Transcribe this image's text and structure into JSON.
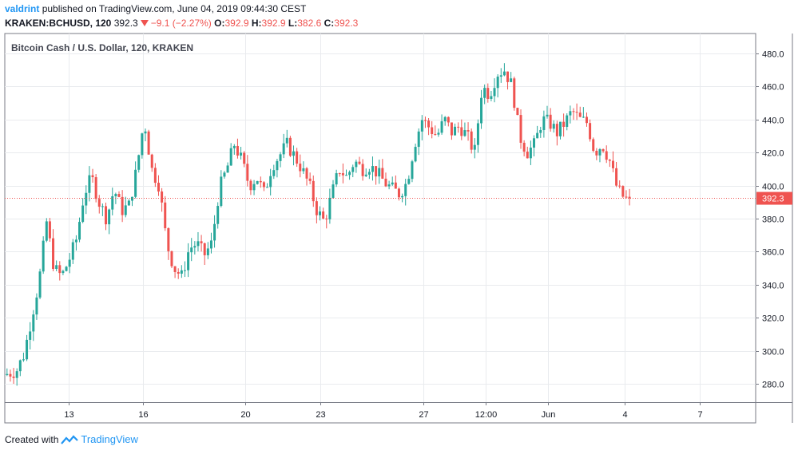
{
  "header": {
    "author": "valdrint",
    "published": "published on TradingView.com, June 04, 2019 09:44:30 CEST",
    "symbol": "KRAKEN:BCHUSD, 120",
    "last": "392.3",
    "change": "−9.1 (−2.27%)",
    "o_label": "O:",
    "o_value": "392.9",
    "h_label": "H:",
    "h_value": "392.9",
    "l_label": "L:",
    "l_value": "382.6",
    "c_label": "C:",
    "c_value": "392.3"
  },
  "footer": {
    "created_with": "Created with",
    "brand": "TradingView"
  },
  "colors": {
    "up": "#26a69a",
    "down": "#ef5350",
    "grid": "#e9ebee",
    "axis": "#787b86",
    "badge": "#ef5350"
  },
  "chart_data": {
    "type": "candlestick",
    "title": "Bitcoin Cash / U.S. Dollar, 120, KRAKEN",
    "ylim": [
      269,
      492
    ],
    "yticks": [
      280,
      300,
      320,
      340,
      360,
      380,
      400,
      420,
      440,
      460,
      480
    ],
    "xlim": [
      0,
      100
    ],
    "xticks": [
      {
        "label": "13",
        "pos": 8.5
      },
      {
        "label": "16",
        "pos": 18.4
      },
      {
        "label": "20",
        "pos": 32.0
      },
      {
        "label": "23",
        "pos": 42.0
      },
      {
        "label": "27",
        "pos": 55.7
      },
      {
        "label": "12:00",
        "pos": 64.0
      },
      {
        "label": "Jun",
        "pos": 72.3
      },
      {
        "label": "4",
        "pos": 82.5
      },
      {
        "label": "7",
        "pos": 92.6
      }
    ],
    "last_price": 392.3,
    "anchors": [
      [
        0,
        285
      ],
      [
        2,
        288
      ],
      [
        3,
        298
      ],
      [
        4,
        320
      ],
      [
        5,
        342
      ],
      [
        6,
        378
      ],
      [
        7,
        350
      ],
      [
        8,
        345
      ],
      [
        9,
        355
      ],
      [
        10,
        368
      ],
      [
        11,
        395
      ],
      [
        12,
        405
      ],
      [
        13,
        390
      ],
      [
        14,
        380
      ],
      [
        15,
        398
      ],
      [
        16,
        385
      ],
      [
        17,
        388
      ],
      [
        18,
        410
      ],
      [
        19,
        440
      ],
      [
        20,
        410
      ],
      [
        21,
        400
      ],
      [
        22,
        365
      ],
      [
        23,
        350
      ],
      [
        24,
        345
      ],
      [
        25,
        362
      ],
      [
        26,
        365
      ],
      [
        27,
        358
      ],
      [
        28,
        365
      ],
      [
        29,
        398
      ],
      [
        30,
        410
      ],
      [
        31,
        425
      ],
      [
        32,
        415
      ],
      [
        33,
        400
      ],
      [
        34,
        405
      ],
      [
        35,
        395
      ],
      [
        36,
        412
      ],
      [
        37,
        418
      ],
      [
        38,
        425
      ],
      [
        39,
        418
      ],
      [
        40,
        410
      ],
      [
        41,
        400
      ],
      [
        42,
        385
      ],
      [
        43,
        378
      ],
      [
        44,
        395
      ],
      [
        45,
        410
      ],
      [
        46,
        405
      ],
      [
        47,
        415
      ],
      [
        48,
        410
      ],
      [
        49,
        412
      ],
      [
        50,
        408
      ],
      [
        51,
        402
      ],
      [
        52,
        398
      ],
      [
        53,
        395
      ],
      [
        54,
        402
      ],
      [
        55,
        425
      ],
      [
        56,
        440
      ],
      [
        57,
        435
      ],
      [
        58,
        430
      ],
      [
        59,
        440
      ],
      [
        60,
        432
      ],
      [
        61,
        436
      ],
      [
        62,
        430
      ],
      [
        63,
        420
      ],
      [
        64,
        460
      ],
      [
        65,
        455
      ],
      [
        66,
        468
      ],
      [
        67,
        470
      ],
      [
        68,
        460
      ],
      [
        69,
        430
      ],
      [
        70,
        420
      ],
      [
        71,
        425
      ],
      [
        72,
        440
      ],
      [
        73,
        438
      ],
      [
        74,
        432
      ],
      [
        75,
        438
      ],
      [
        76,
        445
      ],
      [
        77,
        440
      ],
      [
        78,
        438
      ],
      [
        79,
        420
      ],
      [
        80,
        425
      ],
      [
        81,
        415
      ],
      [
        82,
        398
      ],
      [
        83,
        392
      ]
    ]
  }
}
